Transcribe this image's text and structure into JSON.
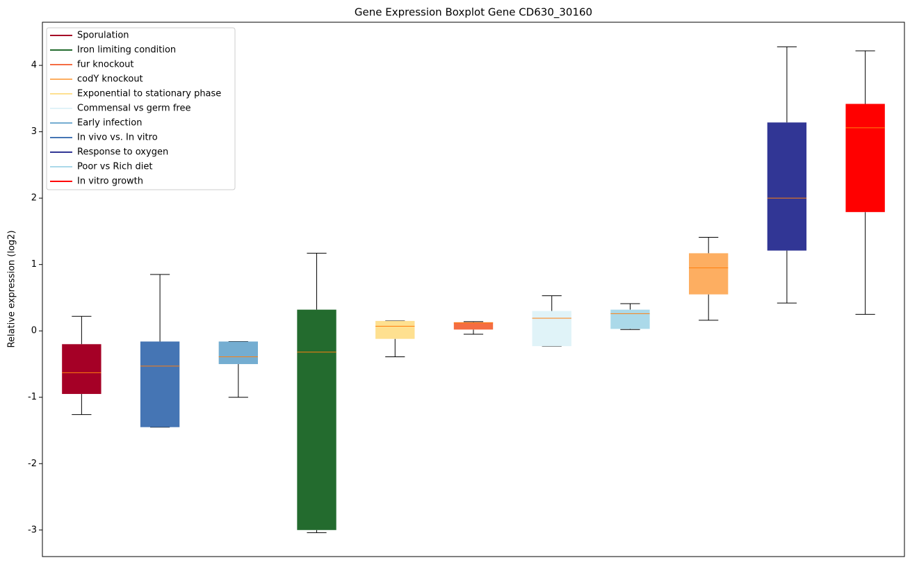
{
  "chart_data": {
    "type": "boxplot",
    "title": "Gene Expression Boxplot Gene CD630_30160",
    "ylabel": "Relative expression (log2)",
    "ylim": [
      -3.4,
      4.65
    ],
    "yticks": [
      -3,
      -2,
      -1,
      0,
      1,
      2,
      3,
      4
    ],
    "xlim": [
      0.5,
      11.5
    ],
    "legend": "upper left",
    "median_color": "#ff7f0e",
    "series": [
      {
        "name": "Sporulation",
        "color": "#a50026",
        "x": 1,
        "whislo": -1.26,
        "q1": -0.95,
        "med": -0.63,
        "q3": -0.2,
        "whishi": 0.22
      },
      {
        "name": "Iron limiting condition",
        "color": "#236b2e",
        "x": 4,
        "whislo": -3.04,
        "q1": -3.0,
        "med": -0.32,
        "q3": 0.32,
        "whishi": 1.17
      },
      {
        "name": "fur knockout",
        "color": "#f46d43",
        "x": 6,
        "whislo": -0.05,
        "q1": 0.02,
        "med": 0.12,
        "q3": 0.13,
        "whishi": 0.14
      },
      {
        "name": "codY knockout",
        "color": "#fdae61",
        "x": 9,
        "whislo": 0.16,
        "q1": 0.55,
        "med": 0.95,
        "q3": 1.17,
        "whishi": 1.41
      },
      {
        "name": "Exponential to stationary phase",
        "color": "#fee090",
        "x": 5,
        "whislo": -0.39,
        "q1": -0.12,
        "med": 0.07,
        "q3": 0.15,
        "whishi": 0.15
      },
      {
        "name": "Commensal vs germ free",
        "color": "#e0f3f8",
        "x": 7,
        "whislo": -0.23,
        "q1": -0.23,
        "med": 0.19,
        "q3": 0.3,
        "whishi": 0.53
      },
      {
        "name": "Early infection",
        "color": "#74add1",
        "x": 3,
        "whislo": -1.0,
        "q1": -0.5,
        "med": -0.39,
        "q3": -0.16,
        "whishi": -0.16
      },
      {
        "name": "In vivo vs. In vitro",
        "color": "#4575b4",
        "x": 2,
        "whislo": -1.45,
        "q1": -1.45,
        "med": -0.53,
        "q3": -0.16,
        "whishi": 0.85
      },
      {
        "name": "Response to oxygen",
        "color": "#313695",
        "x": 10,
        "whislo": 0.42,
        "q1": 1.21,
        "med": 2.0,
        "q3": 3.14,
        "whishi": 4.28
      },
      {
        "name": "Poor vs Rich diet",
        "color": "#abd9e9",
        "x": 8,
        "whislo": 0.02,
        "q1": 0.03,
        "med": 0.26,
        "q3": 0.32,
        "whishi": 0.41
      },
      {
        "name": "In vitro growth",
        "color": "#ff0000",
        "x": 11,
        "whislo": 0.25,
        "q1": 1.79,
        "med": 3.06,
        "q3": 3.42,
        "whishi": 4.22
      }
    ]
  }
}
